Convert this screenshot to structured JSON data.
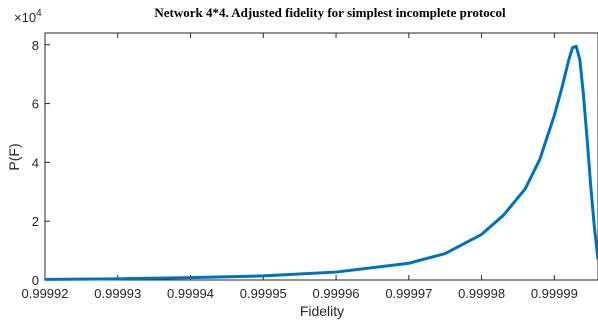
{
  "chart_data": {
    "type": "line",
    "title": "Network 4*4. Adjusted fidelity for simplest incomplete protocol",
    "xlabel": "Fidelity",
    "ylabel": "P(F)",
    "y_multiplier": {
      "base": "×10",
      "exponent": "4"
    },
    "x": [
      0.99992,
      0.99993,
      0.99994,
      0.99995,
      0.99996,
      0.99997,
      0.999975,
      0.99998,
      0.999983,
      0.999986,
      0.999988,
      0.99999,
      0.999991,
      0.999992,
      0.9999925,
      0.999993,
      0.9999935,
      0.999994,
      0.9999945,
      0.999995,
      0.9999955,
      0.999996
    ],
    "series": [
      {
        "color": "#0072bd",
        "values": [
          0.02,
          0.04,
          0.08,
          0.14,
          0.27,
          0.57,
          0.9,
          1.55,
          2.2,
          3.1,
          4.1,
          5.6,
          6.5,
          7.5,
          7.9,
          7.95,
          7.5,
          6.3,
          4.8,
          3.2,
          1.8,
          0.7
        ]
      }
    ],
    "xlim": [
      0.99992,
      0.999996
    ],
    "ylim": [
      0,
      8.4
    ],
    "xticks": [
      0.99992,
      0.99993,
      0.99994,
      0.99995,
      0.99996,
      0.99997,
      0.99998,
      0.99999
    ],
    "yticks": [
      0,
      2,
      4,
      6,
      8
    ]
  }
}
